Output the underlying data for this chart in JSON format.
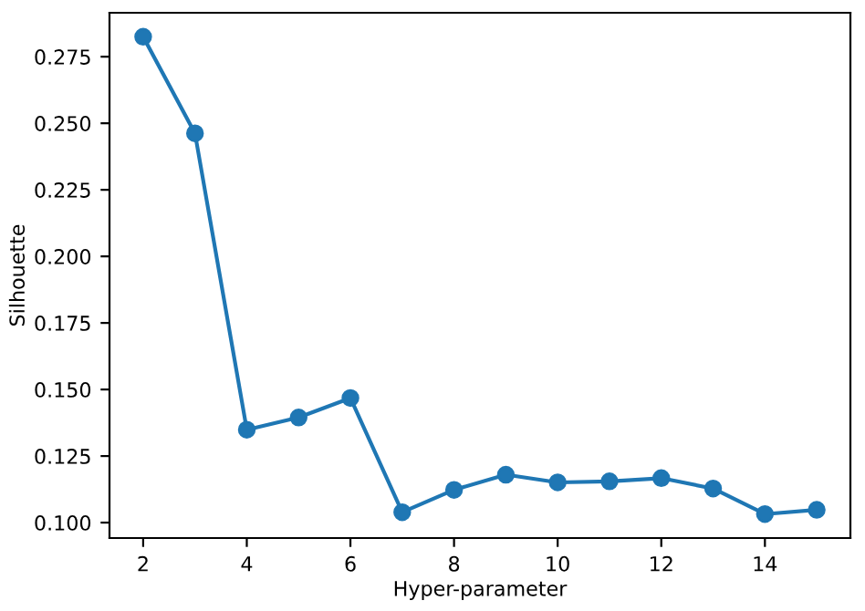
{
  "chart_data": {
    "type": "line",
    "xlabel": "Hyper-parameter",
    "ylabel": "Silhouette",
    "x": [
      2,
      3,
      4,
      5,
      6,
      7,
      8,
      9,
      10,
      11,
      12,
      13,
      14,
      15
    ],
    "series": [
      {
        "color": "#1f77b4",
        "values": [
          0.2825,
          0.2462,
          0.1349,
          0.1395,
          0.1468,
          0.1039,
          0.1123,
          0.118,
          0.1151,
          0.1155,
          0.1167,
          0.1128,
          0.1032,
          0.1048
        ]
      }
    ],
    "marker": "circle",
    "line_style": "solid",
    "grid": false,
    "legend": false,
    "xlim": [
      1.35,
      15.65
    ],
    "ylim": [
      0.0942,
      0.2915
    ],
    "xticks": [
      2,
      4,
      6,
      8,
      10,
      12,
      14
    ],
    "yticks": [
      {
        "value": 0.1,
        "label": "0.100"
      },
      {
        "value": 0.125,
        "label": "0.125"
      },
      {
        "value": 0.15,
        "label": "0.150"
      },
      {
        "value": 0.175,
        "label": "0.175"
      },
      {
        "value": 0.2,
        "label": "0.200"
      },
      {
        "value": 0.225,
        "label": "0.225"
      },
      {
        "value": 0.25,
        "label": "0.250"
      },
      {
        "value": 0.275,
        "label": "0.275"
      }
    ]
  }
}
